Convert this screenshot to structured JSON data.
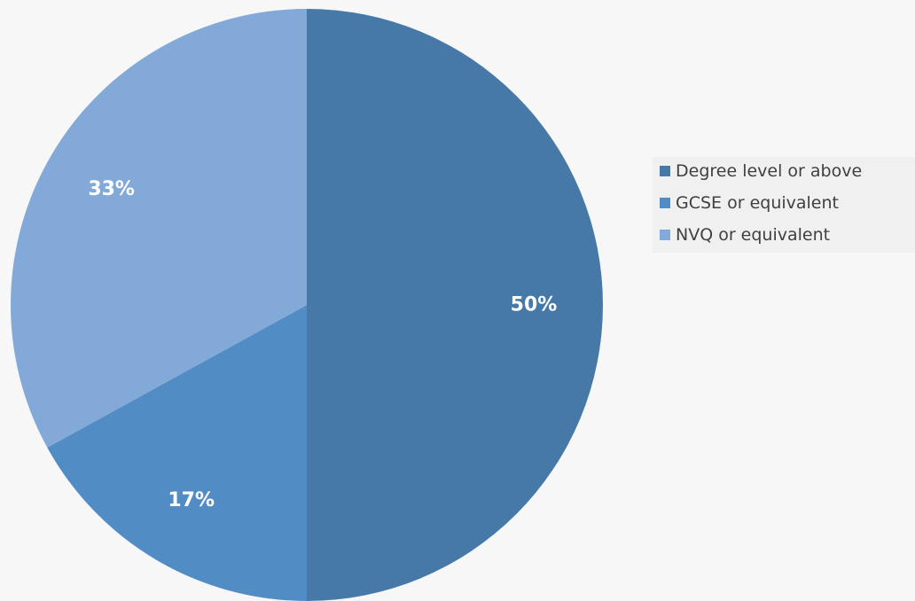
{
  "chart_data": {
    "type": "pie",
    "categories": [
      "Degree level or above",
      "GCSE or equivalent",
      "NVQ or equivalent"
    ],
    "values": [
      50,
      17,
      33
    ],
    "labels": [
      "50%",
      "17%",
      "33%"
    ],
    "colors": [
      "#4779a8",
      "#528cc4",
      "#82a9d8"
    ],
    "title": "",
    "legend": "right"
  }
}
